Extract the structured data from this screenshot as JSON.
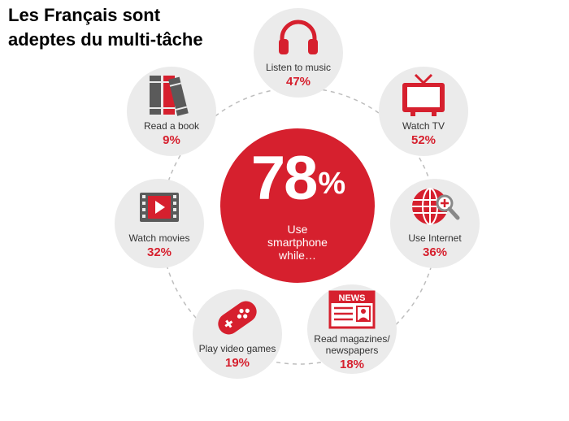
{
  "title": {
    "line1": "Les Français sont",
    "line2": "adeptes du multi-tâche"
  },
  "center": {
    "value": "78",
    "unit": "%",
    "line1": "Use",
    "line2": "smartphone",
    "line3": "while…"
  },
  "activities": [
    {
      "label": "Listen to music",
      "value": "47%",
      "icon": "headphones-icon"
    },
    {
      "label": "Watch TV",
      "value": "52%",
      "icon": "tv-icon"
    },
    {
      "label": "Use Internet",
      "value": "36%",
      "icon": "globe-search-icon"
    },
    {
      "label_line1": "Read magazines/",
      "label_line2": "newspapers",
      "value": "18%",
      "icon": "newspaper-icon",
      "icon_text": "NEWS"
    },
    {
      "label": "Play video games",
      "value": "19%",
      "icon": "gamepad-icon"
    },
    {
      "label": "Watch movies",
      "value": "32%",
      "icon": "film-icon"
    },
    {
      "label": "Read a book",
      "value": "9%",
      "icon": "books-icon"
    }
  ],
  "colors": {
    "accent": "#d6202e",
    "bubble": "#ebebeb",
    "books": [
      "#5a5a5a",
      "#d6202e",
      "#5a5a5a"
    ]
  }
}
